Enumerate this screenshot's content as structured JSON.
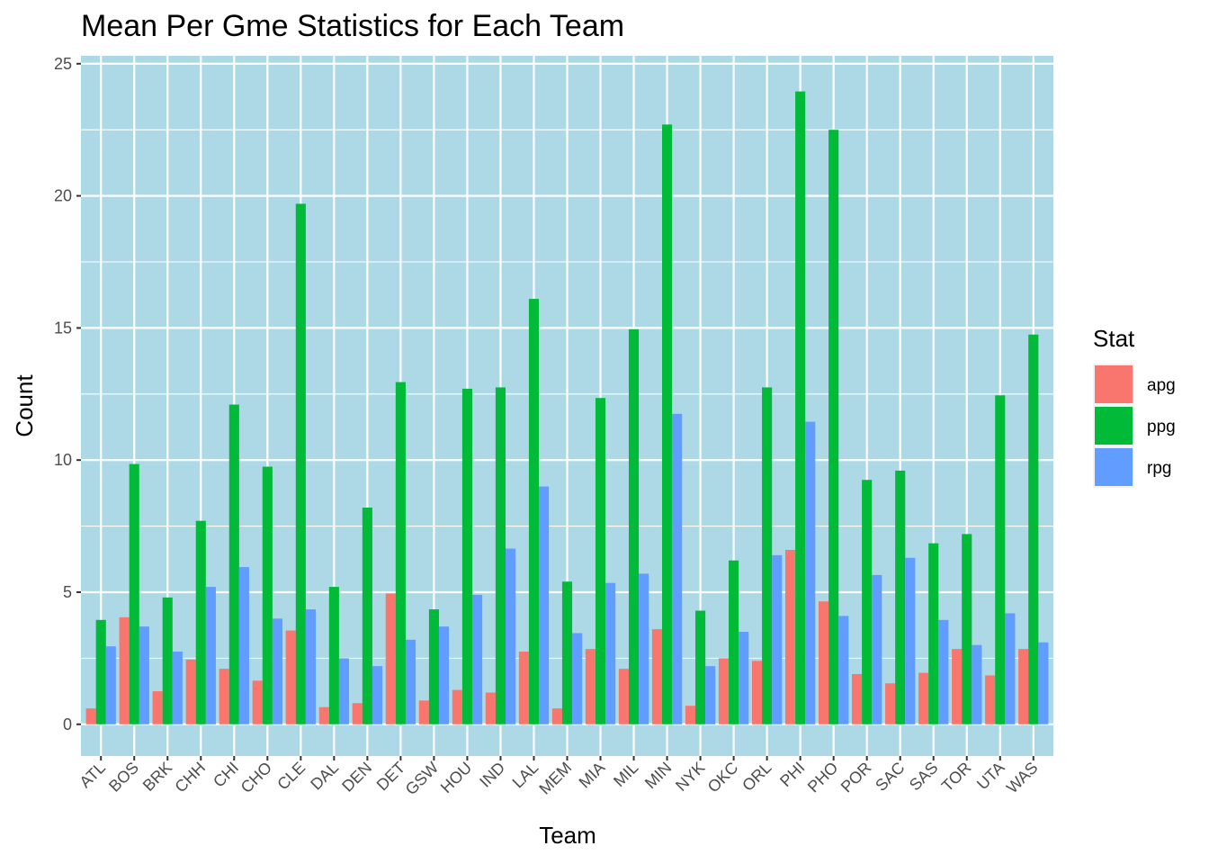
{
  "chart_data": {
    "type": "bar",
    "title": "Mean Per Gme Statistics for Each Team",
    "xlabel": "Team",
    "ylabel": "Count",
    "ylim": [
      -1.2,
      25.3
    ],
    "y_ticks": [
      0,
      5,
      10,
      15,
      20,
      25
    ],
    "grid": true,
    "panel_background": "#add8e6",
    "legend": {
      "title": "Stat",
      "position": "right"
    },
    "categories": [
      "ATL",
      "BOS",
      "BRK",
      "CHH",
      "CHI",
      "CHO",
      "CLE",
      "DAL",
      "DEN",
      "DET",
      "GSW",
      "HOU",
      "IND",
      "LAL",
      "MEM",
      "MIA",
      "MIL",
      "MIN",
      "NYK",
      "OKC",
      "ORL",
      "PHI",
      "PHO",
      "POR",
      "SAC",
      "SAS",
      "TOR",
      "UTA",
      "WAS"
    ],
    "series": [
      {
        "name": "apg",
        "color": "#f8766d",
        "values": [
          0.6,
          4.05,
          1.25,
          2.45,
          2.1,
          1.65,
          3.55,
          0.65,
          0.8,
          4.95,
          0.9,
          1.3,
          1.2,
          2.75,
          0.6,
          2.85,
          2.1,
          3.6,
          0.7,
          2.5,
          2.4,
          6.6,
          4.65,
          1.9,
          1.55,
          1.95,
          2.85,
          1.85,
          2.85
        ]
      },
      {
        "name": "ppg",
        "color": "#00ba38",
        "values": [
          3.95,
          9.85,
          4.8,
          7.7,
          12.1,
          9.75,
          19.7,
          5.2,
          8.2,
          12.95,
          4.35,
          12.7,
          12.75,
          16.1,
          5.4,
          12.35,
          14.95,
          22.7,
          4.3,
          6.2,
          12.75,
          23.95,
          22.5,
          9.25,
          9.6,
          6.85,
          7.2,
          12.45,
          14.75
        ]
      },
      {
        "name": "rpg",
        "color": "#619cff",
        "values": [
          2.95,
          3.7,
          2.75,
          5.2,
          5.95,
          4.0,
          4.35,
          2.5,
          2.2,
          3.2,
          3.7,
          4.9,
          6.65,
          9.0,
          3.45,
          5.35,
          5.7,
          11.75,
          2.2,
          3.5,
          6.4,
          11.45,
          4.1,
          5.65,
          6.3,
          3.95,
          3.0,
          4.2,
          3.1
        ]
      }
    ]
  }
}
